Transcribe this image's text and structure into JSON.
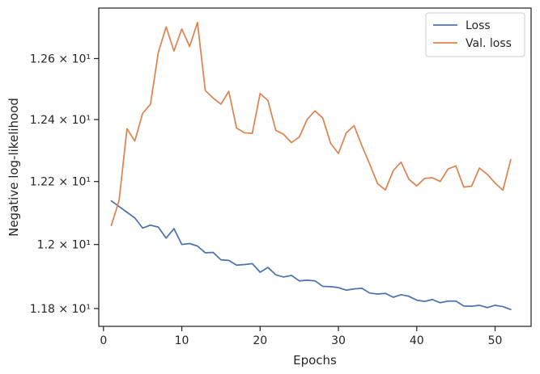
{
  "chart_data": {
    "type": "line",
    "xlabel": "Epochs",
    "ylabel": "Negative log-likelihood",
    "xlim": [
      -0.6,
      54.6
    ],
    "ylim": [
      11.745,
      12.768
    ],
    "yscale": "log",
    "grid": false,
    "legend_position": "top-right",
    "x_ticks": [
      0,
      10,
      20,
      30,
      40,
      50
    ],
    "x_tick_labels": [
      "0",
      "10",
      "20",
      "30",
      "40",
      "50"
    ],
    "y_ticks": [
      11.8,
      12.0,
      12.2,
      12.4,
      12.6
    ],
    "y_tick_labels": [
      "1.18 × 10¹",
      "1.2 × 10¹",
      "1.22 × 10¹",
      "1.24 × 10¹",
      "1.26 × 10¹"
    ],
    "x": [
      1,
      2,
      3,
      4,
      5,
      6,
      7,
      8,
      9,
      10,
      11,
      12,
      13,
      14,
      15,
      16,
      17,
      18,
      19,
      20,
      21,
      22,
      23,
      24,
      25,
      26,
      27,
      28,
      29,
      30,
      31,
      32,
      33,
      34,
      35,
      36,
      37,
      38,
      39,
      40,
      41,
      42,
      43,
      44,
      45,
      46,
      47,
      48,
      49,
      50,
      51,
      52
    ],
    "series": [
      {
        "name": "Loss",
        "color": "#4c72b0",
        "values": [
          12.138,
          12.12,
          12.102,
          12.084,
          12.052,
          12.061,
          12.055,
          12.02,
          12.05,
          12.0,
          12.003,
          11.995,
          11.974,
          11.975,
          11.952,
          11.95,
          11.935,
          11.937,
          11.94,
          11.913,
          11.928,
          11.905,
          11.898,
          11.903,
          11.886,
          11.888,
          11.886,
          11.869,
          11.868,
          11.865,
          11.857,
          11.861,
          11.863,
          11.848,
          11.845,
          11.847,
          11.835,
          11.843,
          11.838,
          11.826,
          11.822,
          11.828,
          11.818,
          11.823,
          11.823,
          11.808,
          11.807,
          11.81,
          11.803,
          11.81,
          11.806,
          11.797
        ]
      },
      {
        "name": "Val. loss",
        "color": "#dd8452",
        "values": [
          12.06,
          12.14,
          12.37,
          12.33,
          12.42,
          12.45,
          12.62,
          12.705,
          12.625,
          12.698,
          12.64,
          12.72,
          12.495,
          12.47,
          12.45,
          12.492,
          12.372,
          12.357,
          12.355,
          12.485,
          12.462,
          12.365,
          12.352,
          12.325,
          12.343,
          12.4,
          12.428,
          12.405,
          12.323,
          12.29,
          12.357,
          12.38,
          12.315,
          12.255,
          12.193,
          12.173,
          12.235,
          12.262,
          12.207,
          12.186,
          12.21,
          12.212,
          12.2,
          12.24,
          12.25,
          12.182,
          12.185,
          12.243,
          12.223,
          12.195,
          12.172,
          12.27
        ]
      }
    ]
  }
}
